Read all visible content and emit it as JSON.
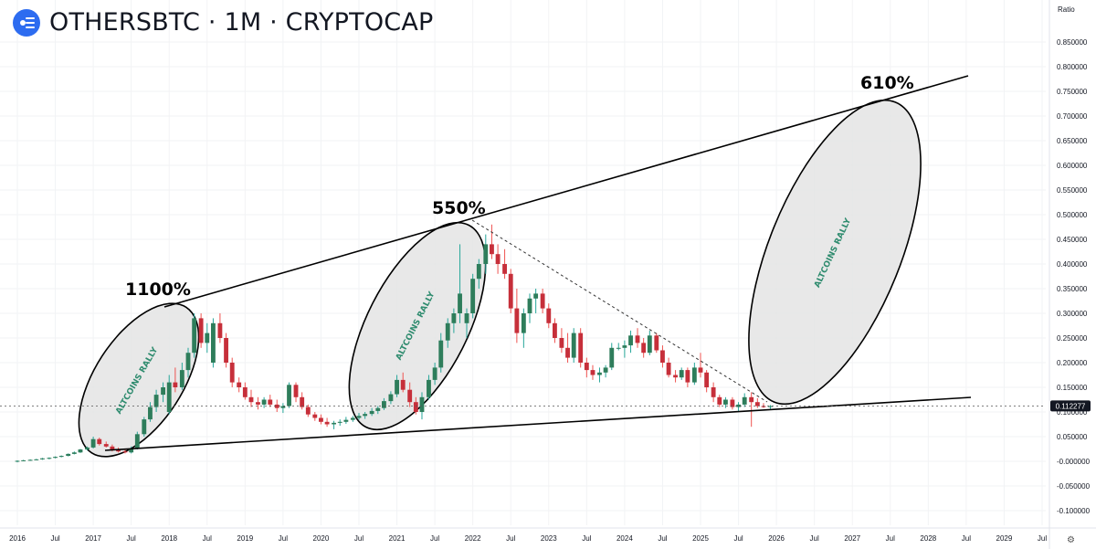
{
  "header": {
    "title": "OTHERSBTC · 1M · CRYPTOCAP",
    "scale_label": "Ratio"
  },
  "chart_data": {
    "type": "candlestick",
    "title": "OTHERSBTC · 1M · CRYPTOCAP",
    "current_price": "0.112277",
    "y_axis": {
      "ticks": [
        "0.850000",
        "0.800000",
        "0.750000",
        "0.700000",
        "0.650000",
        "0.600000",
        "0.550000",
        "0.500000",
        "0.450000",
        "0.400000",
        "0.350000",
        "0.300000",
        "0.250000",
        "0.200000",
        "0.150000",
        "0.100000",
        "0.050000",
        "-0.000000",
        "-0.050000",
        "-0.100000"
      ],
      "ylim": [
        -0.1,
        0.85
      ]
    },
    "x_axis": {
      "ticks": [
        "2016",
        "Jul",
        "2017",
        "Jul",
        "2018",
        "Jul",
        "2019",
        "Jul",
        "2020",
        "Jul",
        "2021",
        "Jul",
        "2022",
        "Jul",
        "2023",
        "Jul",
        "2024",
        "Jul",
        "2025",
        "Jul",
        "2026",
        "Jul",
        "2027",
        "Jul",
        "2028",
        "Jul",
        "2029",
        "Jul"
      ],
      "range": [
        "2016-01",
        "2029-12"
      ]
    },
    "annotations": [
      "1100%",
      "550%",
      "610%",
      "ALTCOINS RALLY",
      "ALTCOINS RALLY",
      "ALTCOINS RALLY"
    ],
    "colors": {
      "up": "#26a69a",
      "down": "#ef5350",
      "up_body": "#2e7d5b",
      "down_body": "#c62f3a"
    },
    "candles": [
      [
        2016.0,
        0.0,
        0.002,
        -0.002,
        0.001
      ],
      [
        2016.08,
        0.001,
        0.003,
        0.0,
        0.002
      ],
      [
        2016.17,
        0.002,
        0.004,
        0.001,
        0.003
      ],
      [
        2016.25,
        0.003,
        0.005,
        0.002,
        0.004
      ],
      [
        2016.33,
        0.004,
        0.007,
        0.003,
        0.006
      ],
      [
        2016.42,
        0.006,
        0.008,
        0.004,
        0.007
      ],
      [
        2016.5,
        0.007,
        0.01,
        0.006,
        0.009
      ],
      [
        2016.58,
        0.009,
        0.012,
        0.008,
        0.011
      ],
      [
        2016.67,
        0.011,
        0.016,
        0.01,
        0.015
      ],
      [
        2016.75,
        0.015,
        0.02,
        0.014,
        0.018
      ],
      [
        2016.83,
        0.018,
        0.025,
        0.017,
        0.024
      ],
      [
        2016.92,
        0.024,
        0.03,
        0.022,
        0.028
      ],
      [
        2017.0,
        0.028,
        0.05,
        0.026,
        0.045
      ],
      [
        2017.08,
        0.045,
        0.048,
        0.032,
        0.035
      ],
      [
        2017.17,
        0.035,
        0.04,
        0.028,
        0.03
      ],
      [
        2017.25,
        0.03,
        0.034,
        0.02,
        0.024
      ],
      [
        2017.33,
        0.024,
        0.028,
        0.018,
        0.02
      ],
      [
        2017.42,
        0.02,
        0.024,
        0.016,
        0.018
      ],
      [
        2017.5,
        0.018,
        0.03,
        0.016,
        0.026
      ],
      [
        2017.58,
        0.026,
        0.06,
        0.024,
        0.055
      ],
      [
        2017.67,
        0.055,
        0.09,
        0.05,
        0.085
      ],
      [
        2017.75,
        0.085,
        0.12,
        0.08,
        0.11
      ],
      [
        2017.83,
        0.11,
        0.145,
        0.1,
        0.135
      ],
      [
        2017.92,
        0.135,
        0.16,
        0.12,
        0.15
      ],
      [
        2018.0,
        0.1,
        0.175,
        0.095,
        0.16
      ],
      [
        2018.08,
        0.16,
        0.19,
        0.14,
        0.15
      ],
      [
        2018.17,
        0.15,
        0.2,
        0.145,
        0.185
      ],
      [
        2018.25,
        0.185,
        0.23,
        0.17,
        0.22
      ],
      [
        2018.33,
        0.22,
        0.3,
        0.21,
        0.29
      ],
      [
        2018.42,
        0.29,
        0.3,
        0.23,
        0.24
      ],
      [
        2018.5,
        0.24,
        0.28,
        0.22,
        0.26
      ],
      [
        2018.58,
        0.2,
        0.29,
        0.19,
        0.28
      ],
      [
        2018.67,
        0.28,
        0.3,
        0.24,
        0.25
      ],
      [
        2018.75,
        0.25,
        0.26,
        0.19,
        0.2
      ],
      [
        2018.83,
        0.2,
        0.21,
        0.15,
        0.16
      ],
      [
        2018.92,
        0.16,
        0.17,
        0.14,
        0.15
      ],
      [
        2019.0,
        0.15,
        0.16,
        0.125,
        0.13
      ],
      [
        2019.08,
        0.13,
        0.145,
        0.11,
        0.12
      ],
      [
        2019.17,
        0.12,
        0.13,
        0.105,
        0.115
      ],
      [
        2019.25,
        0.115,
        0.13,
        0.108,
        0.125
      ],
      [
        2019.33,
        0.125,
        0.135,
        0.11,
        0.115
      ],
      [
        2019.42,
        0.115,
        0.125,
        0.1,
        0.108
      ],
      [
        2019.5,
        0.108,
        0.118,
        0.098,
        0.112
      ],
      [
        2019.58,
        0.112,
        0.16,
        0.108,
        0.155
      ],
      [
        2019.67,
        0.155,
        0.16,
        0.12,
        0.13
      ],
      [
        2019.75,
        0.13,
        0.14,
        0.105,
        0.11
      ],
      [
        2019.83,
        0.11,
        0.115,
        0.09,
        0.095
      ],
      [
        2019.92,
        0.095,
        0.1,
        0.082,
        0.088
      ],
      [
        2020.0,
        0.088,
        0.095,
        0.075,
        0.08
      ],
      [
        2020.08,
        0.08,
        0.088,
        0.07,
        0.075
      ],
      [
        2020.17,
        0.075,
        0.082,
        0.065,
        0.078
      ],
      [
        2020.25,
        0.078,
        0.085,
        0.072,
        0.08
      ],
      [
        2020.33,
        0.08,
        0.09,
        0.076,
        0.084
      ],
      [
        2020.42,
        0.084,
        0.092,
        0.08,
        0.088
      ],
      [
        2020.5,
        0.088,
        0.098,
        0.084,
        0.092
      ],
      [
        2020.58,
        0.092,
        0.1,
        0.086,
        0.096
      ],
      [
        2020.67,
        0.096,
        0.108,
        0.092,
        0.102
      ],
      [
        2020.75,
        0.102,
        0.112,
        0.096,
        0.108
      ],
      [
        2020.83,
        0.108,
        0.128,
        0.104,
        0.122
      ],
      [
        2020.92,
        0.122,
        0.142,
        0.116,
        0.136
      ],
      [
        2021.0,
        0.136,
        0.175,
        0.13,
        0.165
      ],
      [
        2021.08,
        0.165,
        0.18,
        0.14,
        0.145
      ],
      [
        2021.17,
        0.145,
        0.16,
        0.11,
        0.12
      ],
      [
        2021.25,
        0.12,
        0.13,
        0.095,
        0.1
      ],
      [
        2021.33,
        0.1,
        0.14,
        0.085,
        0.13
      ],
      [
        2021.42,
        0.13,
        0.175,
        0.125,
        0.165
      ],
      [
        2021.5,
        0.165,
        0.2,
        0.155,
        0.19
      ],
      [
        2021.58,
        0.19,
        0.26,
        0.18,
        0.245
      ],
      [
        2021.67,
        0.245,
        0.29,
        0.23,
        0.28
      ],
      [
        2021.75,
        0.28,
        0.31,
        0.26,
        0.3
      ],
      [
        2021.83,
        0.3,
        0.44,
        0.28,
        0.34
      ],
      [
        2021.92,
        0.28,
        0.31,
        0.25,
        0.3
      ],
      [
        2022.0,
        0.3,
        0.38,
        0.29,
        0.37
      ],
      [
        2022.08,
        0.37,
        0.41,
        0.35,
        0.4
      ],
      [
        2022.17,
        0.4,
        0.46,
        0.38,
        0.44
      ],
      [
        2022.25,
        0.44,
        0.48,
        0.41,
        0.42
      ],
      [
        2022.33,
        0.42,
        0.44,
        0.38,
        0.4
      ],
      [
        2022.42,
        0.4,
        0.43,
        0.37,
        0.38
      ],
      [
        2022.5,
        0.38,
        0.39,
        0.3,
        0.31
      ],
      [
        2022.58,
        0.31,
        0.35,
        0.24,
        0.26
      ],
      [
        2022.67,
        0.26,
        0.31,
        0.23,
        0.3
      ],
      [
        2022.75,
        0.3,
        0.34,
        0.28,
        0.33
      ],
      [
        2022.83,
        0.33,
        0.35,
        0.3,
        0.34
      ],
      [
        2022.92,
        0.34,
        0.35,
        0.3,
        0.31
      ],
      [
        2023.0,
        0.31,
        0.32,
        0.27,
        0.28
      ],
      [
        2023.08,
        0.28,
        0.29,
        0.24,
        0.25
      ],
      [
        2023.17,
        0.25,
        0.27,
        0.22,
        0.23
      ],
      [
        2023.25,
        0.23,
        0.26,
        0.2,
        0.21
      ],
      [
        2023.33,
        0.21,
        0.27,
        0.2,
        0.26
      ],
      [
        2023.42,
        0.26,
        0.27,
        0.19,
        0.2
      ],
      [
        2023.5,
        0.2,
        0.21,
        0.17,
        0.185
      ],
      [
        2023.58,
        0.185,
        0.195,
        0.165,
        0.175
      ],
      [
        2023.67,
        0.175,
        0.19,
        0.16,
        0.18
      ],
      [
        2023.75,
        0.18,
        0.195,
        0.17,
        0.19
      ],
      [
        2023.83,
        0.19,
        0.24,
        0.185,
        0.23
      ],
      [
        2023.92,
        0.23,
        0.24,
        0.225,
        0.23
      ],
      [
        2024.0,
        0.23,
        0.245,
        0.21,
        0.235
      ],
      [
        2024.08,
        0.235,
        0.265,
        0.22,
        0.255
      ],
      [
        2024.17,
        0.255,
        0.27,
        0.23,
        0.24
      ],
      [
        2024.25,
        0.24,
        0.25,
        0.21,
        0.22
      ],
      [
        2024.33,
        0.22,
        0.265,
        0.215,
        0.255
      ],
      [
        2024.42,
        0.255,
        0.26,
        0.22,
        0.225
      ],
      [
        2024.5,
        0.225,
        0.235,
        0.19,
        0.2
      ],
      [
        2024.58,
        0.2,
        0.21,
        0.17,
        0.175
      ],
      [
        2024.67,
        0.175,
        0.185,
        0.16,
        0.17
      ],
      [
        2024.75,
        0.17,
        0.19,
        0.165,
        0.185
      ],
      [
        2024.83,
        0.185,
        0.19,
        0.15,
        0.16
      ],
      [
        2024.92,
        0.16,
        0.2,
        0.155,
        0.19
      ],
      [
        2025.0,
        0.19,
        0.22,
        0.17,
        0.18
      ],
      [
        2025.08,
        0.18,
        0.185,
        0.14,
        0.15
      ],
      [
        2025.17,
        0.15,
        0.16,
        0.12,
        0.13
      ],
      [
        2025.25,
        0.13,
        0.135,
        0.11,
        0.115
      ],
      [
        2025.33,
        0.115,
        0.13,
        0.108,
        0.125
      ],
      [
        2025.42,
        0.125,
        0.13,
        0.105,
        0.11
      ],
      [
        2025.5,
        0.11,
        0.12,
        0.102,
        0.115
      ],
      [
        2025.58,
        0.115,
        0.138,
        0.11,
        0.13
      ],
      [
        2025.67,
        0.13,
        0.14,
        0.07,
        0.12
      ],
      [
        2025.75,
        0.12,
        0.128,
        0.108,
        0.112
      ],
      [
        2025.83,
        0.112,
        0.118,
        0.108,
        0.11
      ],
      [
        2025.92,
        0.11,
        0.114,
        0.106,
        0.112
      ]
    ]
  }
}
